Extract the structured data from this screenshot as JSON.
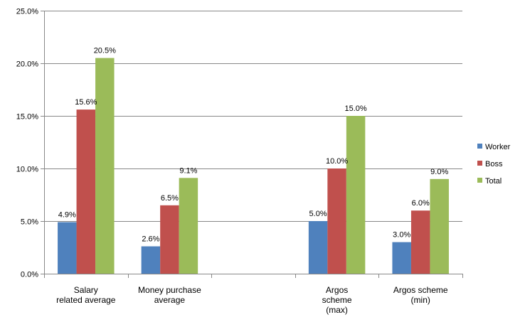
{
  "chart_data": {
    "type": "bar",
    "categories": [
      [
        "Salary",
        "related average"
      ],
      [
        "Money purchase",
        "average"
      ],
      [
        ""
      ],
      [
        "Argos",
        "scheme",
        "(max)"
      ],
      [
        "Argos scheme",
        "(min)"
      ]
    ],
    "series": [
      {
        "name": "Worker",
        "color": "#4F81BD",
        "values": [
          4.9,
          2.6,
          null,
          5.0,
          3.0
        ],
        "labels": [
          "4.9%",
          "2.6%",
          null,
          "5.0%",
          "3.0%"
        ]
      },
      {
        "name": "Boss",
        "color": "#C0504D",
        "values": [
          15.6,
          6.5,
          null,
          10.0,
          6.0
        ],
        "labels": [
          "15.6%",
          "6.5%",
          null,
          "10.0%",
          "6.0%"
        ]
      },
      {
        "name": "Total",
        "color": "#9BBB59",
        "values": [
          20.5,
          9.1,
          null,
          15.0,
          9.0
        ],
        "labels": [
          "20.5%",
          "9.1%",
          null,
          "15.0%",
          "9.0%"
        ]
      }
    ],
    "ylim": [
      0,
      25
    ],
    "yticks": [
      0,
      5,
      10,
      15,
      20,
      25
    ],
    "ytick_labels": [
      "0.0%",
      "5.0%",
      "10.0%",
      "15.0%",
      "20.0%",
      "25.0%"
    ],
    "grid": true,
    "legend_position": "right",
    "title": "",
    "xlabel": "",
    "ylabel": ""
  }
}
